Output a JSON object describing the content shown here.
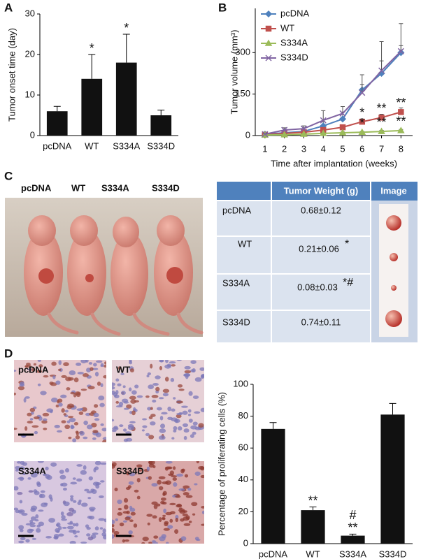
{
  "panels": [
    "A",
    "B",
    "C",
    "D"
  ],
  "chart_data": [
    {
      "type": "bar",
      "ylabel": "Tumor onset time (day)",
      "categories": [
        "pcDNA",
        "WT",
        "S334A",
        "S334D"
      ],
      "values": [
        6,
        14,
        18,
        5
      ],
      "errors": [
        1.2,
        6,
        7,
        1.3
      ],
      "annotations": [
        null,
        [
          "*"
        ],
        [
          "*"
        ],
        null
      ],
      "color": "#111111",
      "ylim": [
        0,
        30
      ],
      "yticks": [
        0,
        10,
        20,
        30
      ]
    },
    {
      "type": "line",
      "ylabel": "Tumor volume (mm³)",
      "xlabel": "Time after implantation (weeks)",
      "x": [
        1,
        2,
        3,
        4,
        5,
        6,
        7,
        8
      ],
      "xlim": [
        0.5,
        8.6
      ],
      "xticks": [
        1,
        2,
        3,
        4,
        5,
        6,
        7,
        8
      ],
      "ylim": [
        0,
        460
      ],
      "yticks": [
        0,
        150,
        300
      ],
      "legend": "upper left",
      "series": [
        {
          "name": "pcDNA",
          "color": "#4f81bd",
          "marker": "diamond",
          "values": [
            5,
            10,
            15,
            35,
            60,
            165,
            225,
            300
          ],
          "errors": [
            2,
            3,
            5,
            15,
            25,
            55,
            115,
            105
          ],
          "annotations": [
            null,
            null,
            null,
            null,
            null,
            null,
            null,
            null
          ]
        },
        {
          "name": "WT",
          "color": "#c0504d",
          "marker": "square",
          "values": [
            3,
            8,
            12,
            20,
            30,
            50,
            65,
            85
          ],
          "errors": [
            2,
            3,
            3,
            5,
            8,
            10,
            12,
            15
          ],
          "annotations": [
            null,
            null,
            null,
            null,
            null,
            "*",
            "**",
            "**"
          ]
        },
        {
          "name": "S334A",
          "color": "#9bbb59",
          "marker": "triangle",
          "values": [
            2,
            3,
            5,
            8,
            10,
            12,
            15,
            18
          ],
          "errors": [
            1,
            1,
            2,
            2,
            3,
            3,
            4,
            4
          ],
          "annotations": [
            null,
            null,
            null,
            null,
            null,
            "*",
            "**",
            "**"
          ]
        },
        {
          "name": "S334D",
          "color": "#8064a2",
          "marker": "x",
          "values": [
            5,
            20,
            25,
            55,
            80,
            155,
            235,
            305
          ],
          "errors": [
            3,
            8,
            10,
            35,
            25,
            30,
            35,
            20
          ],
          "annotations": [
            null,
            null,
            null,
            null,
            null,
            null,
            null,
            null
          ]
        }
      ]
    },
    {
      "type": "bar",
      "ylabel": "Percentage of proliferating cells (%)",
      "categories": [
        "pcDNA",
        "WT",
        "S334A",
        "S334D"
      ],
      "values": [
        72,
        21,
        5,
        81
      ],
      "errors": [
        4,
        2,
        1,
        7
      ],
      "annotations": [
        null,
        [
          "**"
        ],
        [
          "#",
          "**"
        ],
        null
      ],
      "color": "#111111",
      "ylim": [
        0,
        100
      ],
      "yticks": [
        0,
        20,
        40,
        60,
        80,
        100
      ]
    }
  ],
  "photo_labels": [
    "pcDNA",
    "WT",
    "S334A",
    "S334D"
  ],
  "table": {
    "header": [
      "Tumor Weight (g)",
      "Image"
    ],
    "rows": [
      {
        "group": "pcDNA",
        "weight": "0.68±0.12"
      },
      {
        "group": "WT",
        "weight": "0.21±0.06",
        "sig": "*"
      },
      {
        "group": "S334A",
        "weight": "0.08±0.03",
        "sig": "*#"
      },
      {
        "group": "S334D",
        "weight": "0.74±0.11"
      }
    ]
  },
  "stain_labels": [
    "pcDNA",
    "WT",
    "S334A",
    "S334D"
  ]
}
